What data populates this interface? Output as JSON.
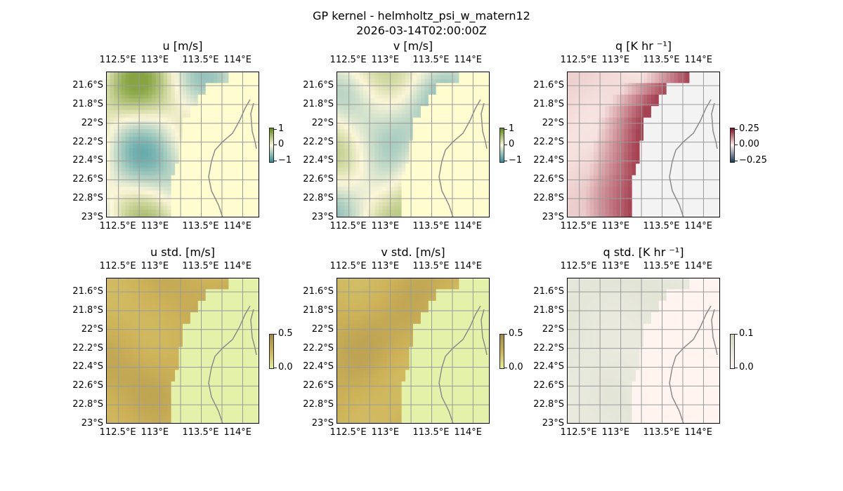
{
  "figure": {
    "title": "GP kernel - helmholtz_psi_w_matern12",
    "subtitle": "2026-03-14T02:00:00Z"
  },
  "axes_ticks": {
    "lon_labels": [
      "112.5°E",
      "113°E",
      "113.5°E",
      "114°E"
    ],
    "lat_labels": [
      "21.6°S",
      "21.8°S",
      "22°S",
      "22.2°S",
      "22.4°S",
      "22.6°S",
      "22.8°S",
      "23°S"
    ]
  },
  "chart_data": [
    {
      "type": "heatmap",
      "title": "u [m/s]",
      "xlim": [
        112.35,
        114.2
      ],
      "ylim": [
        -23.0,
        -21.45
      ],
      "colorbar_ticks": [
        "1",
        "0",
        "−1"
      ],
      "colormap": "diverging teal-yellow-olive",
      "colors": {
        "low": "#2f8f9c",
        "mid": "#fbf6d8",
        "high": "#5f8a10",
        "land": "#fffccf",
        "ocean": "#8fa8d8"
      },
      "range": [
        -1,
        1
      ]
    },
    {
      "type": "heatmap",
      "title": "v [m/s]",
      "xlim": [
        112.35,
        114.2
      ],
      "ylim": [
        -23.0,
        -21.45
      ],
      "colorbar_ticks": [
        "1",
        "0",
        "−1"
      ],
      "colormap": "diverging teal-yellow-olive",
      "colors": {
        "low": "#2f8f9c",
        "mid": "#fbf6d8",
        "high": "#5f8a10",
        "land": "#fffccf",
        "ocean": "#8fa8d8"
      },
      "range": [
        -1,
        1
      ]
    },
    {
      "type": "heatmap",
      "title": "q [K hr ⁻¹]",
      "xlim": [
        112.35,
        114.2
      ],
      "ylim": [
        -23.0,
        -21.45
      ],
      "colorbar_ticks": [
        "0.25",
        "0.00",
        "−0.25"
      ],
      "colormap": "diverging red",
      "colors": {
        "low": "#153a5c",
        "mid": "#fdf1ec",
        "high": "#8a0820",
        "land": "#f3f3f3",
        "ocean": "#8fa8d8"
      },
      "range": [
        -0.35,
        0.35
      ]
    },
    {
      "type": "heatmap",
      "title": "u std. [m/s]",
      "xlim": [
        112.35,
        114.2
      ],
      "ylim": [
        -23.0,
        -21.45
      ],
      "colorbar_ticks": [
        "0.5",
        "0.0"
      ],
      "colormap": "sequential olive",
      "colors": {
        "low": "#e2ee9c",
        "mid": "#cdb257",
        "high": "#a08a4a",
        "land": "#e3f2a8",
        "ocean": "#8fa8d8"
      },
      "range": [
        0,
        0.5
      ]
    },
    {
      "type": "heatmap",
      "title": "v std. [m/s]",
      "xlim": [
        112.35,
        114.2
      ],
      "ylim": [
        -23.0,
        -21.45
      ],
      "colorbar_ticks": [
        "0.5",
        "0.0"
      ],
      "colormap": "sequential olive",
      "colors": {
        "low": "#e2ee9c",
        "mid": "#cdb257",
        "high": "#a08a4a",
        "land": "#e3f2a8",
        "ocean": "#8fa8d8"
      },
      "range": [
        0,
        0.5
      ]
    },
    {
      "type": "heatmap",
      "title": "q std. [K hr ⁻¹]",
      "xlim": [
        112.35,
        114.2
      ],
      "ylim": [
        -23.0,
        -21.45
      ],
      "colorbar_ticks": [
        "0.1",
        "0.0"
      ],
      "colormap": "sequential pale green",
      "colors": {
        "low": "#fdf3ee",
        "mid": "#e7e8dc",
        "high": "#cfd6bf",
        "land": "#fff4f0",
        "ocean": "#8fa8d8"
      },
      "range": [
        0,
        0.1
      ]
    }
  ]
}
